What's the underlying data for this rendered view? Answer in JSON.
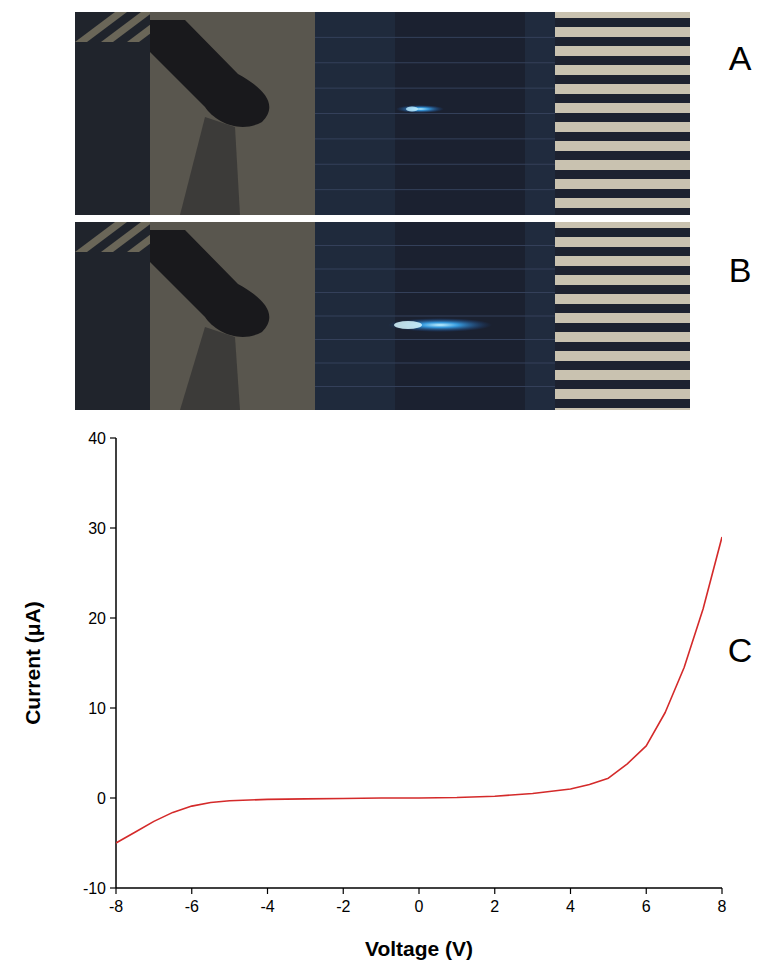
{
  "panels": [
    "A",
    "B",
    "C"
  ],
  "chart_data": {
    "type": "line",
    "x_label": "Voltage (V)",
    "y_label": "Current (μA)",
    "x": [
      -8,
      -7.5,
      -7,
      -6.5,
      -6,
      -5.5,
      -5,
      -4,
      -3,
      -2,
      -1,
      0,
      1,
      2,
      3,
      4,
      4.5,
      5,
      5.5,
      6,
      6.5,
      7,
      7.5,
      8
    ],
    "values": [
      -5,
      -3.8,
      -2.6,
      -1.6,
      -0.9,
      -0.5,
      -0.3,
      -0.15,
      -0.1,
      -0.05,
      0,
      0,
      0.05,
      0.2,
      0.5,
      1.0,
      1.5,
      2.2,
      3.8,
      5.8,
      9.5,
      14.5,
      21,
      29
    ],
    "color": "#d42a2a",
    "xlim": [
      -8,
      8
    ],
    "ylim": [
      -10,
      40
    ],
    "xticks": [
      -8,
      -6,
      -4,
      -2,
      0,
      2,
      4,
      6,
      8
    ],
    "yticks": [
      -10,
      0,
      10,
      20,
      30,
      40
    ],
    "grid": false
  }
}
